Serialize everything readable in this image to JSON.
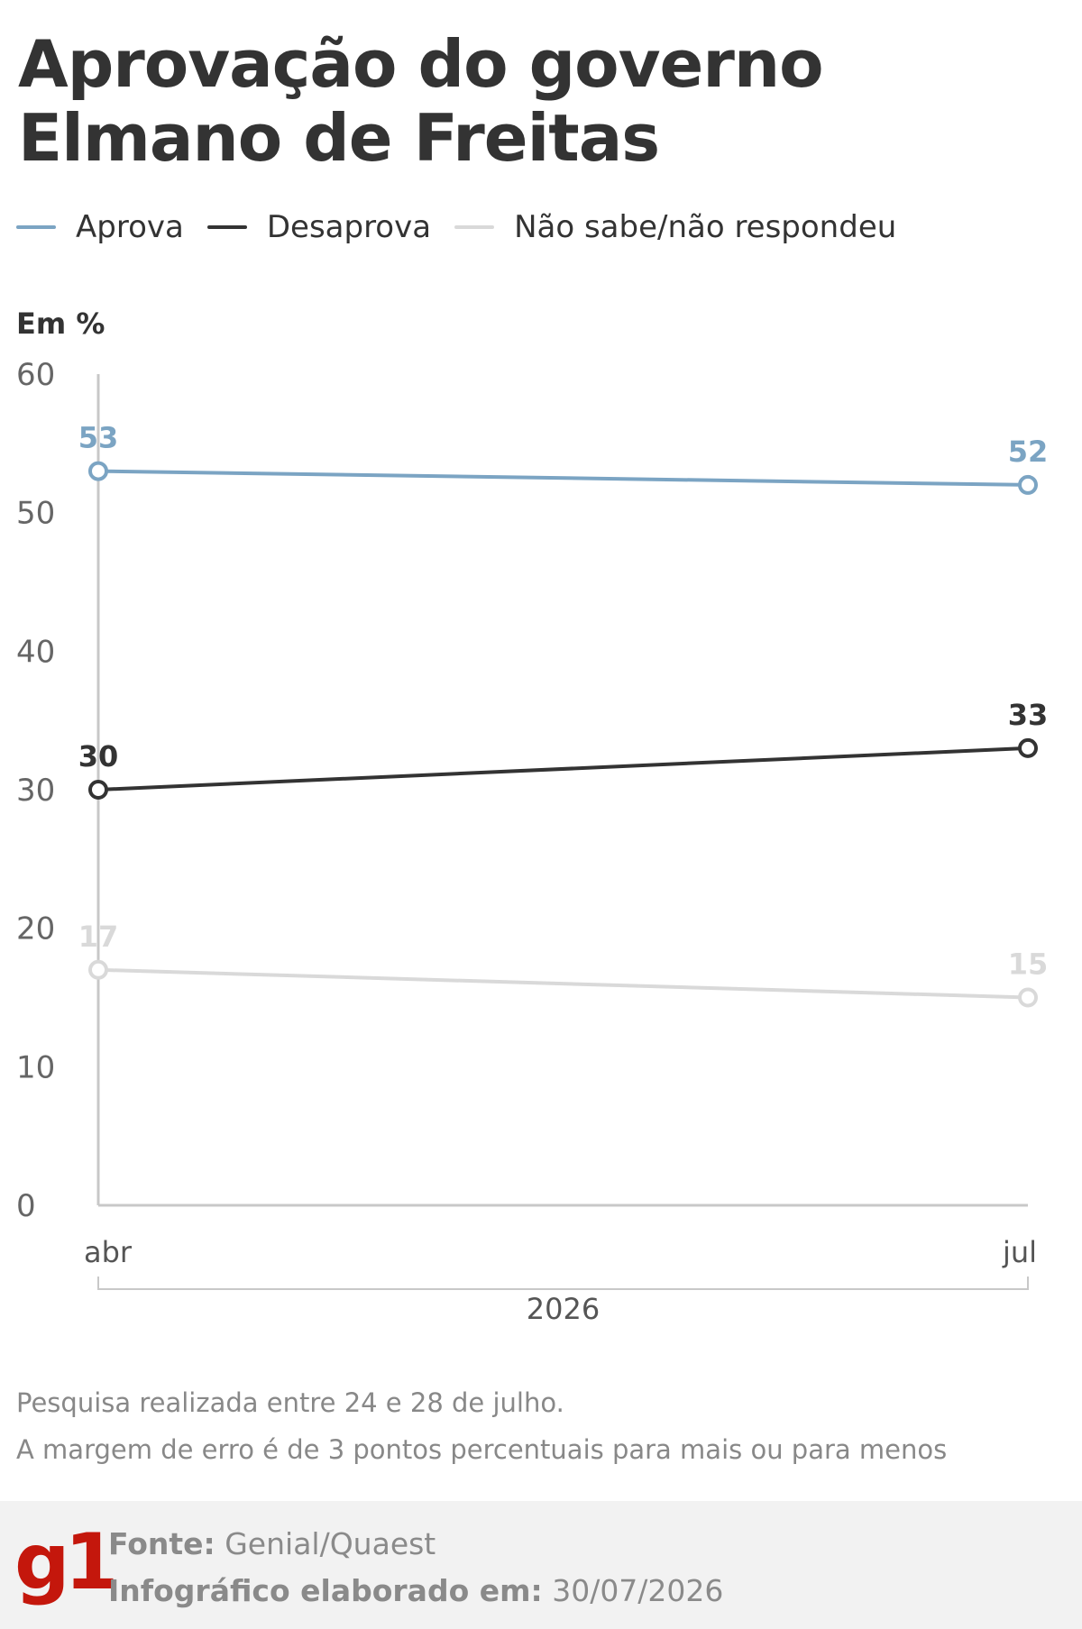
{
  "title_line1": "Aprovação do governo",
  "title_line2": "Elmano de Freitas",
  "unit_label": "Em %",
  "legend": [
    {
      "label": "Aprova",
      "color": "#7ba4c3"
    },
    {
      "label": "Desaprova",
      "color": "#333333"
    },
    {
      "label": "Não sabe/não respondeu",
      "color": "#d9d9d9"
    }
  ],
  "chart_data": {
    "type": "line",
    "categories": [
      "abr",
      "jul"
    ],
    "period_label": "2026",
    "ylim": [
      0,
      60
    ],
    "yticks": [
      0,
      10,
      20,
      30,
      40,
      50,
      60
    ],
    "grid": false,
    "legend_position": "top",
    "series": [
      {
        "name": "Aprova",
        "values": [
          53,
          52
        ],
        "color": "#7ba4c3"
      },
      {
        "name": "Desaprova",
        "values": [
          30,
          33
        ],
        "color": "#333333"
      },
      {
        "name": "Não sabe/não respondeu",
        "values": [
          17,
          15
        ],
        "color": "#d9d9d9"
      }
    ]
  },
  "notes": [
    "Pesquisa realizada entre 24 e 28 de julho.",
    "A margem de erro é de 3 pontos percentuais para mais ou para menos"
  ],
  "footer": {
    "logo": "g1",
    "source_label": "Fonte:",
    "source_value": "Genial/Quaest",
    "date_label": "Infográfico elaborado em:",
    "date_value": "30/07/2026"
  }
}
